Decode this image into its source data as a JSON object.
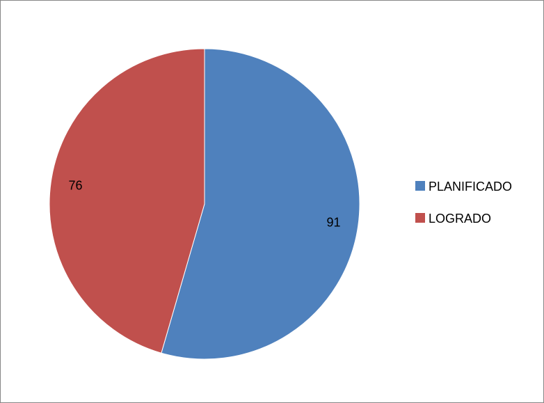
{
  "chart_data": {
    "type": "pie",
    "title": "",
    "slices": [
      {
        "label": "PLANIFICADO",
        "value": 91,
        "color": "#4F81BD"
      },
      {
        "label": "LOGRADO",
        "value": 76,
        "color": "#C0504D"
      }
    ],
    "start_angle_deg": 0,
    "direction": "clockwise",
    "data_labels": true,
    "legend": {
      "position": "right",
      "items": [
        {
          "label": "PLANIFICADO",
          "color": "#4F81BD"
        },
        {
          "label": "LOGRADO",
          "color": "#C0504D"
        }
      ]
    }
  }
}
